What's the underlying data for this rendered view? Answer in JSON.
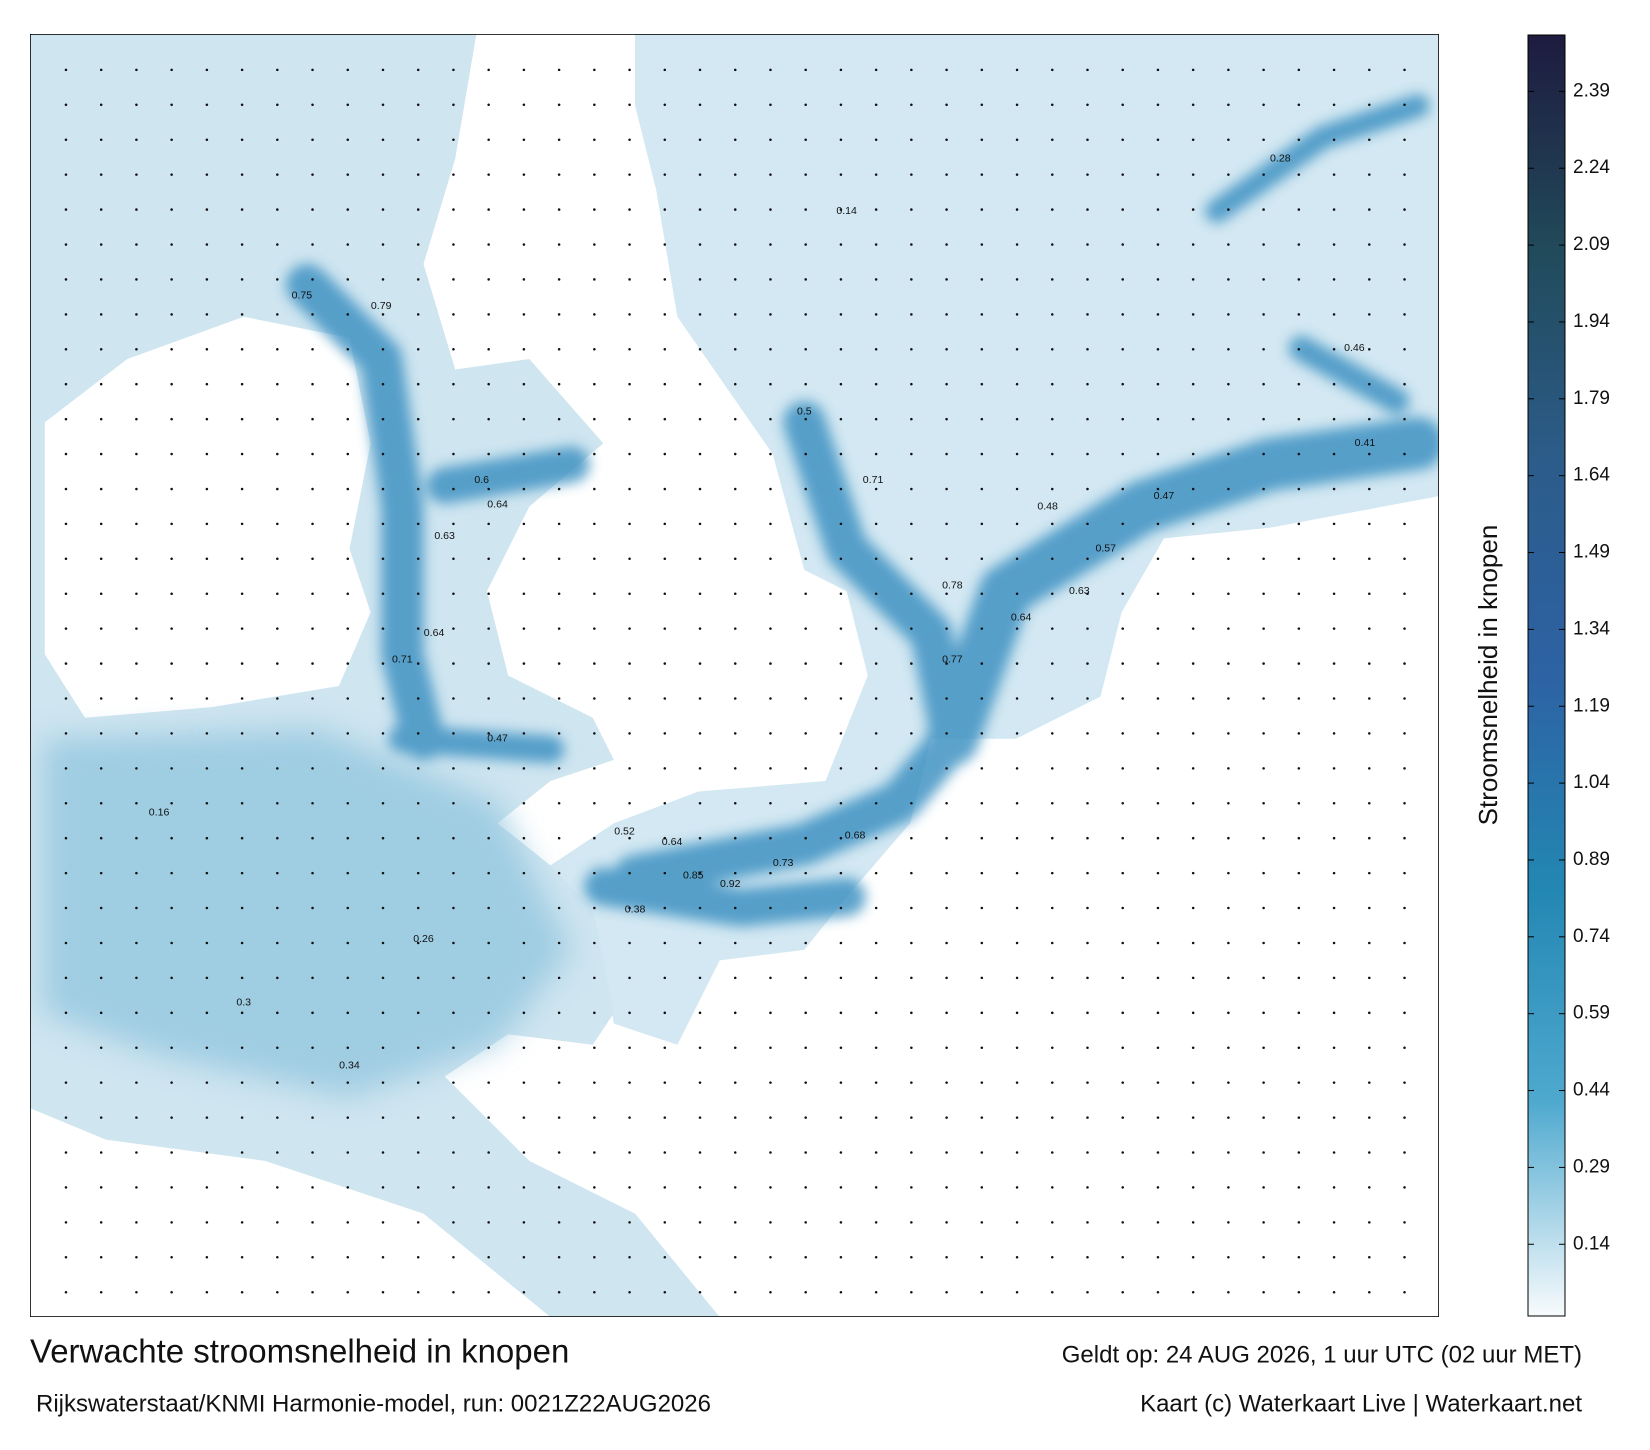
{
  "title": "Verwachte stroomsnelheid in knopen",
  "subtitle": "Rijkswaterstaat/KNMI Harmonie-model, run: 0021Z22AUG2026",
  "valid_time": "Geldt op: 24 AUG 2026, 1 uur UTC (02 uur MET)",
  "credit": "Kaart (c) Waterkaart Live | Waterkaart.net",
  "colorbar": {
    "label": "Stroomsnelheid in knopen",
    "lim": [
      0,
      2.5
    ],
    "ticks": [
      0.14,
      0.29,
      0.44,
      0.59,
      0.74,
      0.89,
      1.04,
      1.19,
      1.34,
      1.49,
      1.64,
      1.79,
      1.94,
      2.09,
      2.24,
      2.39
    ],
    "colors": [
      "#f8fbfd",
      "#4fa9cf",
      "#2387b3",
      "#2d62a4",
      "#2c5c8a",
      "#214a5a",
      "#1e1b3f"
    ]
  },
  "current_labels": [
    0.85,
    0.92,
    0.73,
    0.68,
    0.64,
    0.52,
    0.38,
    0.77,
    0.64,
    0.63,
    0.57,
    0.48,
    0.78,
    0.63,
    0.64,
    0.71,
    0.79,
    0.75,
    0.6,
    0.64,
    0.41,
    0.46,
    0.47,
    0.71,
    0.5,
    0.34,
    0.3,
    0.26,
    0.16,
    0.28,
    0.14,
    0.47
  ]
}
